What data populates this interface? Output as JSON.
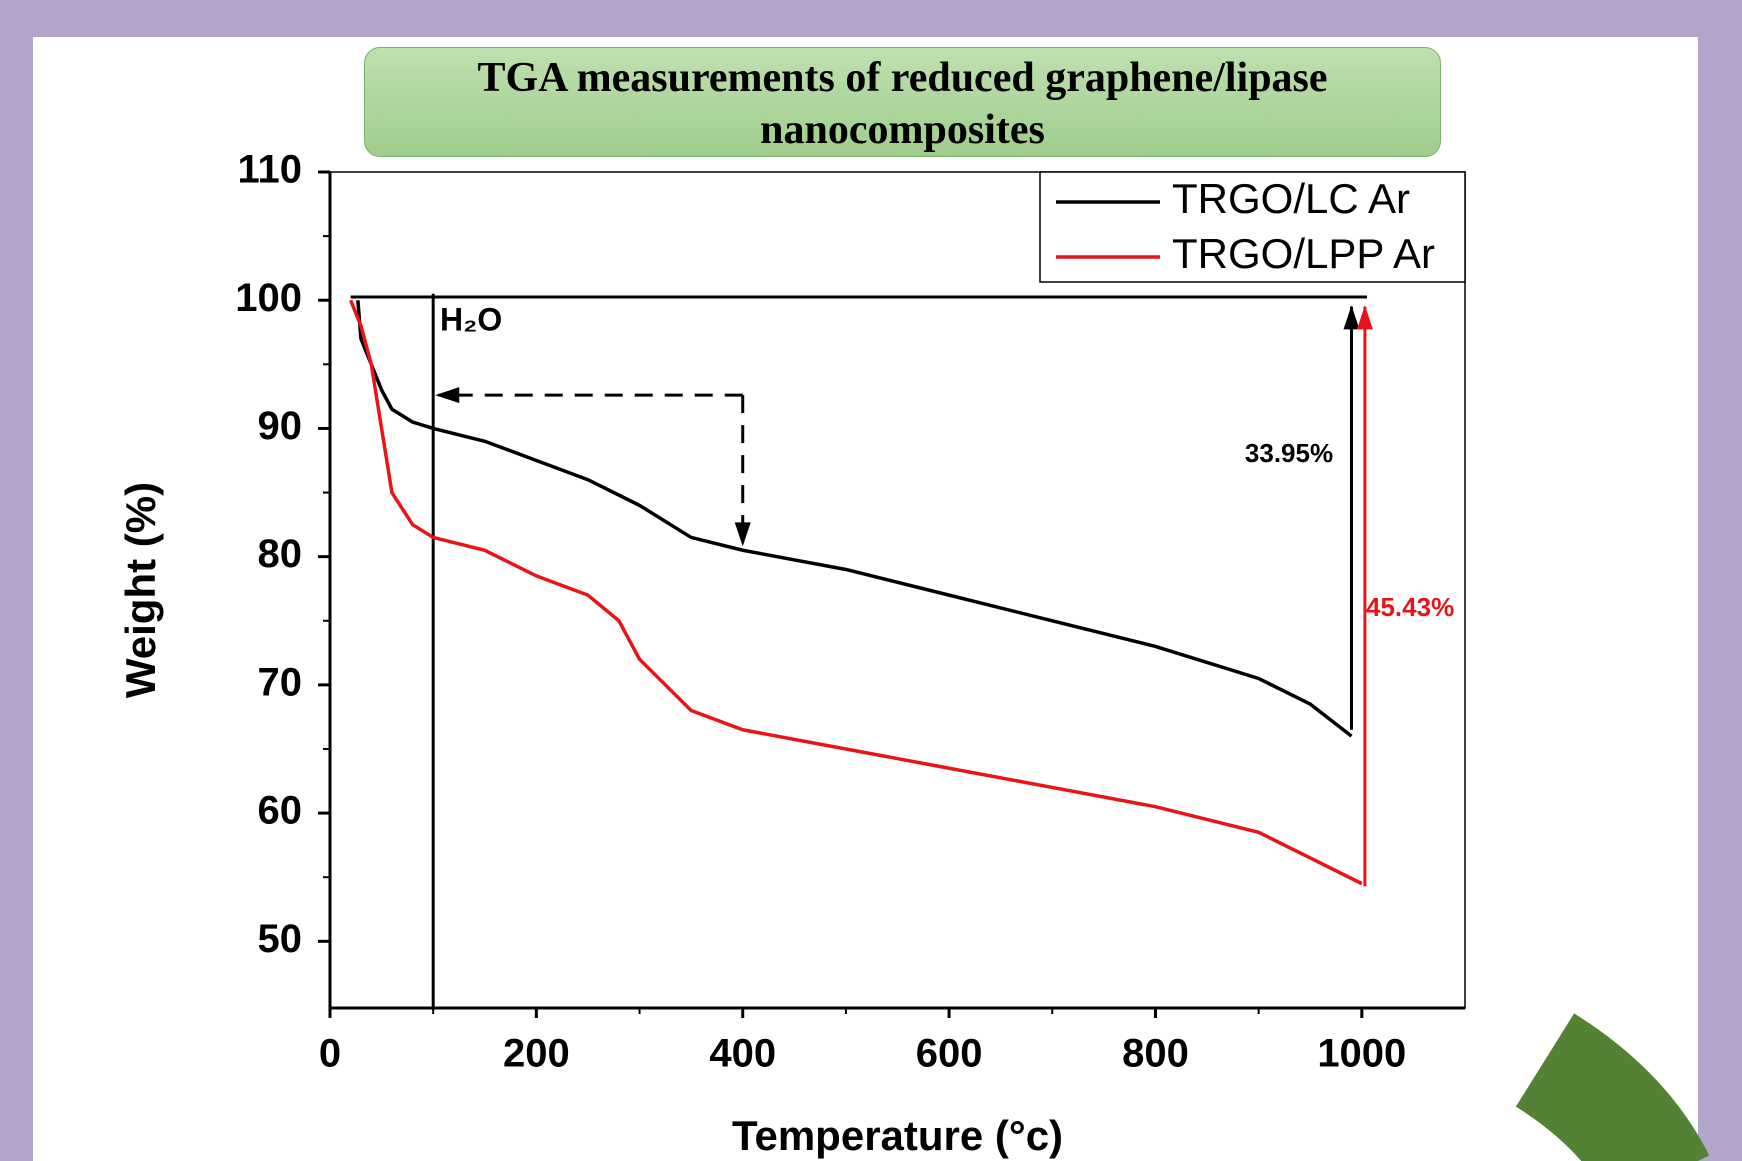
{
  "chart_data": {
    "type": "line",
    "title": "TGA measurements of reduced graphene/lipase nanocomposites",
    "xlabel": "Temperature (°c)",
    "ylabel": "Weight (%)",
    "xlim": [
      0,
      1100
    ],
    "xticks": [
      0,
      200,
      400,
      600,
      800,
      1000
    ],
    "ylim": [
      44.8,
      110
    ],
    "yticks": [
      50,
      60,
      70,
      80,
      90,
      100,
      110
    ],
    "legend": "top-right",
    "series": [
      {
        "name": "TRGO/LC Ar",
        "color": "#000000",
        "x": [
          27,
          30,
          40,
          50,
          60,
          80,
          100,
          150,
          200,
          250,
          300,
          350,
          400,
          500,
          600,
          700,
          800,
          900,
          950,
          990
        ],
        "values": [
          100,
          97,
          95,
          93,
          91.5,
          90.5,
          90,
          89,
          87.5,
          86,
          84,
          81.5,
          80.5,
          79,
          77,
          75,
          73,
          70.5,
          68.5,
          66
        ]
      },
      {
        "name": "TRGO/LPP Ar",
        "color": "#e8141a",
        "x": [
          20,
          30,
          40,
          50,
          60,
          80,
          100,
          150,
          200,
          250,
          280,
          300,
          350,
          400,
          500,
          600,
          700,
          800,
          900,
          950,
          1000
        ],
        "values": [
          100,
          98,
          95,
          90,
          85,
          82.5,
          81.5,
          80.5,
          78.5,
          77,
          75,
          72,
          68,
          66.5,
          65,
          63.5,
          62,
          60.5,
          58.5,
          56.5,
          54.5
        ]
      }
    ],
    "annotations": [
      "H₂O",
      "33.95%",
      "45.43%"
    ]
  }
}
